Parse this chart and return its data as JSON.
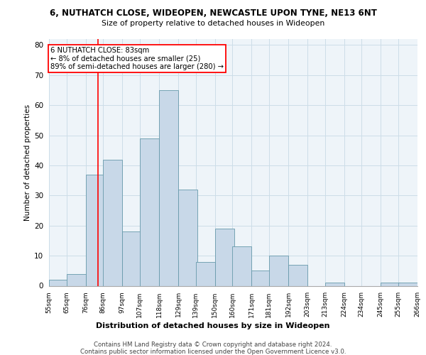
{
  "title1": "6, NUTHATCH CLOSE, WIDEOPEN, NEWCASTLE UPON TYNE, NE13 6NT",
  "title2": "Size of property relative to detached houses in Wideopen",
  "xlabel": "Distribution of detached houses by size in Wideopen",
  "ylabel": "Number of detached properties",
  "bar_color": "#c8d8e8",
  "bar_edge_color": "#6699aa",
  "grid_color": "#ccdde8",
  "vline_x": 83,
  "vline_color": "red",
  "annotation_text": "6 NUTHATCH CLOSE: 83sqm\n← 8% of detached houses are smaller (25)\n89% of semi-detached houses are larger (280) →",
  "annotation_box_color": "white",
  "annotation_box_edge_color": "red",
  "bins_left": [
    55,
    65,
    76,
    86,
    97,
    107,
    118,
    129,
    139,
    150,
    160,
    171,
    181,
    192,
    203,
    213,
    224,
    234,
    245,
    255
  ],
  "bin_width": 11,
  "bar_heights": [
    2,
    4,
    37,
    42,
    18,
    49,
    65,
    32,
    8,
    19,
    13,
    5,
    10,
    7,
    0,
    1,
    0,
    0,
    1,
    1
  ],
  "tick_labels": [
    "55sqm",
    "65sqm",
    "76sqm",
    "86sqm",
    "97sqm",
    "107sqm",
    "118sqm",
    "129sqm",
    "139sqm",
    "150sqm",
    "160sqm",
    "171sqm",
    "181sqm",
    "192sqm",
    "203sqm",
    "213sqm",
    "224sqm",
    "234sqm",
    "245sqm",
    "255sqm",
    "266sqm"
  ],
  "ylim": [
    0,
    82
  ],
  "yticks": [
    0,
    10,
    20,
    30,
    40,
    50,
    60,
    70,
    80
  ],
  "footer1": "Contains HM Land Registry data © Crown copyright and database right 2024.",
  "footer2": "Contains public sector information licensed under the Open Government Licence v3.0.",
  "background_color": "#eef4f9",
  "fig_background": "#ffffff"
}
